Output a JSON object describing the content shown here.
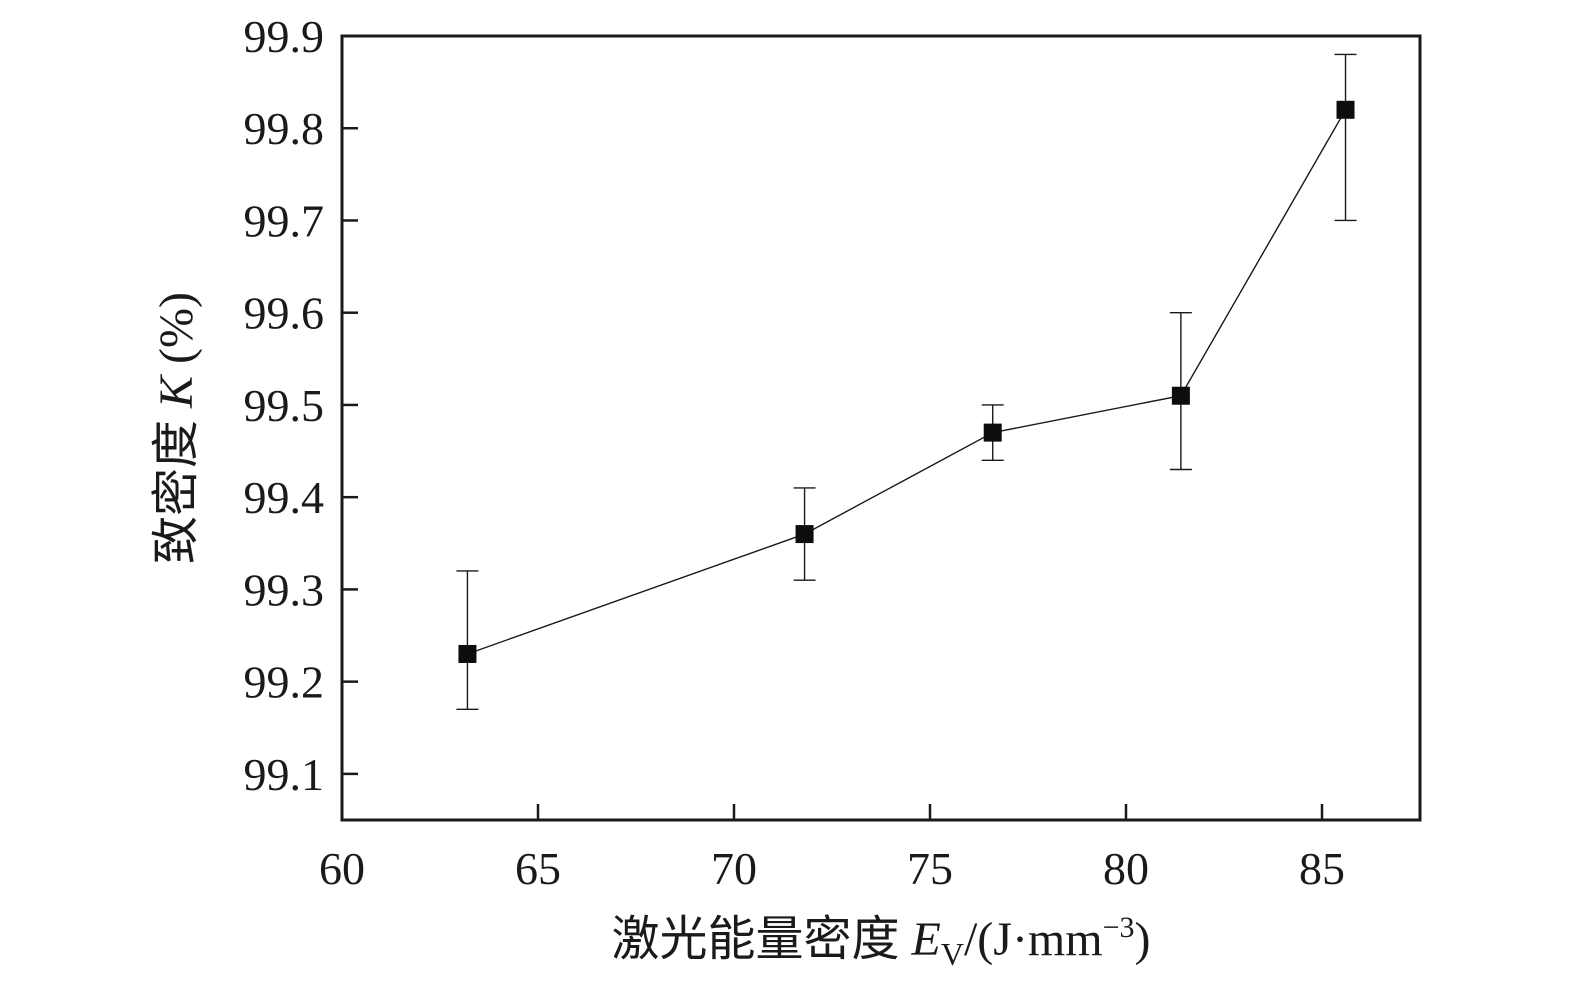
{
  "chart_data": {
    "type": "scatter",
    "xlabel": {
      "prefix": "激光能量密度 ",
      "symbol": "E",
      "subscript": "V",
      "unit_open": "/(J·mm",
      "superscript": "−3",
      "unit_close": ")"
    },
    "ylabel": {
      "prefix": "致密度 ",
      "symbol": "K",
      "suffix": " (%)"
    },
    "xlim": [
      60,
      87.5
    ],
    "ylim": [
      99.05,
      99.9
    ],
    "x_ticks": [
      60,
      65,
      70,
      75,
      80,
      85
    ],
    "y_ticks": [
      99.1,
      99.2,
      99.3,
      99.4,
      99.5,
      99.6,
      99.7,
      99.8,
      99.9
    ],
    "x_tick_labels": [
      "60",
      "65",
      "70",
      "75",
      "80",
      "85"
    ],
    "y_tick_labels": [
      "99.1",
      "99.2",
      "99.3",
      "99.4",
      "99.5",
      "99.6",
      "99.7",
      "99.8",
      "99.9"
    ],
    "grid": false,
    "marker": "square",
    "connect_points": true,
    "series": [
      {
        "x": [
          63.2,
          71.8,
          76.6,
          81.4,
          85.6
        ],
        "y": [
          99.23,
          99.36,
          99.47,
          99.51,
          99.82
        ],
        "error_low": [
          99.17,
          99.31,
          99.44,
          99.43,
          99.7
        ],
        "error_high": [
          99.32,
          99.41,
          99.5,
          99.6,
          99.88
        ]
      }
    ],
    "colors": {
      "marker": "#0d0d0d",
      "line": "#1a1a1a",
      "axes": "#1a1a1a"
    }
  }
}
